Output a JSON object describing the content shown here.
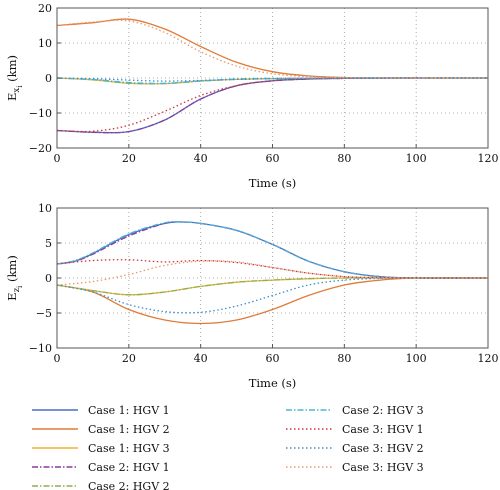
{
  "chart_data": [
    {
      "type": "line",
      "xlabel": "Time (s)",
      "ylabel": "E",
      "ylabel_sub": "x",
      "ylabel_subsub": "i",
      "ylabel_unit": " (km)",
      "xlim": [
        0,
        120
      ],
      "ylim": [
        -20,
        20
      ],
      "xticks": [
        0,
        20,
        40,
        60,
        80,
        100,
        120
      ],
      "yticks": [
        -20,
        -10,
        0,
        10,
        20
      ],
      "grid": true,
      "series": [
        {
          "name": "Case 1: HGV 1",
          "color": "#4a6fc4",
          "dash": "solid",
          "x": [
            0,
            10,
            20,
            30,
            40,
            50,
            60,
            70,
            80,
            90,
            100,
            120
          ],
          "y": [
            -15,
            -15.5,
            -15.3,
            -12,
            -6,
            -2.2,
            -0.8,
            -0.3,
            -0.1,
            -0.03,
            0,
            0
          ]
        },
        {
          "name": "Case 1: HGV 2",
          "color": "#e07b39",
          "dash": "solid",
          "x": [
            0,
            10,
            20,
            30,
            40,
            50,
            60,
            70,
            80,
            90,
            100,
            120
          ],
          "y": [
            15,
            15.8,
            16.8,
            14,
            9,
            4.5,
            1.8,
            0.6,
            0.15,
            0.03,
            0,
            0
          ]
        },
        {
          "name": "Case 1: HGV 3",
          "color": "#f0b23a",
          "dash": "solid",
          "x": [
            0,
            10,
            20,
            30,
            40,
            50,
            60,
            80,
            100,
            120
          ],
          "y": [
            0,
            -0.5,
            -1.5,
            -1.6,
            -0.9,
            -0.4,
            -0.2,
            0,
            0,
            0
          ]
        },
        {
          "name": "Case 2: HGV 1",
          "color": "#8a3d9a",
          "dash": "dashdot",
          "x": [
            0,
            10,
            20,
            30,
            40,
            50,
            60,
            70,
            80,
            90,
            100,
            120
          ],
          "y": [
            -15,
            -15.5,
            -15.3,
            -12,
            -6,
            -2.2,
            -0.8,
            -0.3,
            -0.1,
            -0.03,
            0,
            0
          ]
        },
        {
          "name": "Case 2: HGV 2",
          "color": "#8cb050",
          "dash": "dashdot",
          "x": [
            0,
            10,
            20,
            30,
            40,
            50,
            60,
            80,
            100,
            120
          ],
          "y": [
            0,
            -0.5,
            -1.5,
            -1.6,
            -0.9,
            -0.4,
            -0.2,
            0,
            0,
            0
          ]
        },
        {
          "name": "Case 2: HGV 3",
          "color": "#49b7d6",
          "dash": "dashdot",
          "x": [
            0,
            10,
            20,
            30,
            40,
            50,
            60,
            80,
            100,
            120
          ],
          "y": [
            0,
            -0.4,
            -1.3,
            -1.5,
            -0.8,
            -0.3,
            -0.1,
            0,
            0,
            0
          ]
        },
        {
          "name": "Case 3: HGV 1",
          "color": "#c9353a",
          "dash": "dotted",
          "x": [
            0,
            10,
            20,
            30,
            40,
            50,
            60,
            70,
            80,
            90,
            100,
            120
          ],
          "y": [
            -15,
            -15.2,
            -13.5,
            -9.5,
            -5,
            -2.2,
            -0.8,
            -0.3,
            -0.1,
            -0.02,
            0,
            0
          ]
        },
        {
          "name": "Case 3: HGV 2",
          "color": "#3b8ed8",
          "dash": "dotted",
          "x": [
            0,
            10,
            20,
            30,
            40,
            50,
            60,
            80,
            100,
            120
          ],
          "y": [
            0,
            -0.2,
            -0.6,
            -0.9,
            -0.7,
            -0.4,
            -0.2,
            0,
            0,
            0
          ]
        },
        {
          "name": "Case 3: HGV 3",
          "color": "#e79a6a",
          "dash": "dotted",
          "x": [
            0,
            10,
            20,
            30,
            40,
            50,
            60,
            70,
            80,
            90,
            100,
            120
          ],
          "y": [
            15,
            16,
            16.3,
            13,
            7.5,
            3.4,
            1.2,
            0.4,
            0.1,
            0.02,
            0,
            0
          ]
        }
      ]
    },
    {
      "type": "line",
      "xlabel": "Time (s)",
      "ylabel": "E",
      "ylabel_sub": "z",
      "ylabel_subsub": "i",
      "ylabel_unit": " (km)",
      "xlim": [
        0,
        120
      ],
      "ylim": [
        -10,
        10
      ],
      "xticks": [
        0,
        20,
        40,
        60,
        80,
        100,
        120
      ],
      "yticks": [
        -10,
        -5,
        0,
        5,
        10
      ],
      "grid": true,
      "series": [
        {
          "name": "Case 1: HGV 1",
          "color": "#4a6fc4",
          "dash": "solid",
          "x": [
            0,
            5,
            10,
            20,
            30,
            35,
            40,
            50,
            60,
            70,
            80,
            90,
            100,
            120
          ],
          "y": [
            2,
            2.4,
            3.5,
            6.2,
            7.8,
            8,
            7.8,
            6.8,
            4.8,
            2.4,
            0.9,
            0.2,
            0,
            0
          ]
        },
        {
          "name": "Case 1: HGV 2",
          "color": "#e07b39",
          "dash": "solid",
          "x": [
            0,
            10,
            20,
            30,
            40,
            50,
            60,
            70,
            80,
            90,
            100,
            120
          ],
          "y": [
            -1,
            -2,
            -4.5,
            -6,
            -6.5,
            -6,
            -4.5,
            -2.5,
            -1,
            -0.3,
            0,
            0
          ]
        },
        {
          "name": "Case 1: HGV 3",
          "color": "#f0b23a",
          "dash": "solid",
          "x": [
            0,
            10,
            20,
            30,
            40,
            50,
            60,
            70,
            80,
            100,
            120
          ],
          "y": [
            -1,
            -1.8,
            -2.4,
            -2,
            -1.2,
            -0.6,
            -0.3,
            -0.1,
            0,
            0,
            0
          ]
        },
        {
          "name": "Case 2: HGV 1",
          "color": "#8a3d9a",
          "dash": "dashdot",
          "x": [
            0,
            5,
            10,
            20,
            30,
            35,
            40,
            50,
            60,
            70,
            80,
            90,
            100,
            120
          ],
          "y": [
            2,
            2.4,
            3.4,
            6,
            7.8,
            8,
            7.8,
            6.8,
            4.8,
            2.4,
            0.9,
            0.2,
            0,
            0
          ]
        },
        {
          "name": "Case 2: HGV 2",
          "color": "#8cb050",
          "dash": "dashdot",
          "x": [
            0,
            10,
            20,
            30,
            40,
            50,
            60,
            70,
            80,
            100,
            120
          ],
          "y": [
            -1,
            -1.8,
            -2.4,
            -2,
            -1.2,
            -0.6,
            -0.3,
            -0.1,
            0,
            0,
            0
          ]
        },
        {
          "name": "Case 2: HGV 3",
          "color": "#49b7d6",
          "dash": "dashdot",
          "x": [
            0,
            5,
            10,
            20,
            30,
            35,
            40,
            50,
            60,
            70,
            80,
            90,
            100,
            120
          ],
          "y": [
            2,
            2.5,
            3.6,
            6.3,
            7.9,
            8,
            7.8,
            6.8,
            4.8,
            2.4,
            0.9,
            0.2,
            0,
            0
          ]
        },
        {
          "name": "Case 3: HGV 1",
          "color": "#c9353a",
          "dash": "dotted",
          "x": [
            0,
            10,
            20,
            30,
            40,
            50,
            60,
            70,
            80,
            90,
            100,
            120
          ],
          "y": [
            2,
            2.5,
            2.6,
            2.3,
            2.5,
            2.2,
            1.5,
            0.7,
            0.2,
            0.05,
            0,
            0
          ]
        },
        {
          "name": "Case 3: HGV 2",
          "color": "#3b8ed8",
          "dash": "dotted",
          "x": [
            0,
            10,
            20,
            30,
            40,
            50,
            60,
            70,
            80,
            90,
            100,
            120
          ],
          "y": [
            -1,
            -2,
            -3.8,
            -4.8,
            -4.9,
            -4,
            -2.5,
            -1,
            -0.3,
            -0.05,
            0,
            0
          ]
        },
        {
          "name": "Case 3: HGV 3",
          "color": "#e79a6a",
          "dash": "dotted",
          "x": [
            0,
            10,
            20,
            30,
            40,
            50,
            60,
            70,
            80,
            90,
            100,
            120
          ],
          "y": [
            -1,
            -0.5,
            0.5,
            1.8,
            2.4,
            2.3,
            1.5,
            0.7,
            0.2,
            0.05,
            0,
            0
          ]
        }
      ]
    }
  ]
}
